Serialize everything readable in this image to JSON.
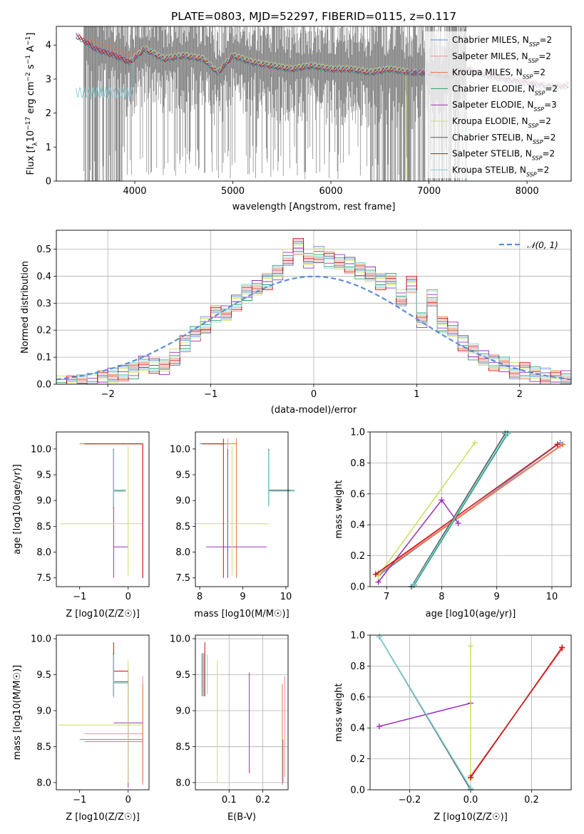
{
  "chart_data": [
    {
      "id": "spectrum",
      "type": "line",
      "title": "PLATE=0803, MJD=52297, FIBERID=0115, z=0.117",
      "xlabel": "wavelength [Angstrom, rest frame]",
      "ylabel": "Flux [f_λ 10^-17 erg cm^-2 s^-1 A^-1]",
      "xlim": [
        3200,
        8450
      ],
      "ylim": [
        0,
        4.55
      ],
      "xticks": [
        4000,
        5000,
        6000,
        7000,
        8000
      ],
      "yticks": [
        0,
        1,
        2,
        3,
        4
      ],
      "grid": false,
      "legend_position": "top-right",
      "data_x": [
        3400,
        3600,
        3800,
        3950,
        4100,
        4300,
        4500,
        4700,
        4850,
        5000,
        5200,
        5400,
        5600,
        5800,
        6000,
        6200,
        6400,
        6600,
        6800,
        7000,
        7200,
        7400,
        7600,
        7800,
        8000,
        8200,
        8400
      ],
      "data_y": [
        4.3,
        3.9,
        3.7,
        3.5,
        3.9,
        3.6,
        3.7,
        3.6,
        3.2,
        3.7,
        3.5,
        3.4,
        3.3,
        3.4,
        3.3,
        3.3,
        3.2,
        3.3,
        3.2,
        3.2,
        3.1,
        3.3,
        3.1,
        3.0,
        2.9,
        2.8,
        2.8
      ],
      "series": [
        {
          "name": "Chabrier MILES, N_SSP=2",
          "color": "#5b8fd6"
        },
        {
          "name": "Salpeter MILES, N_SSP=2",
          "color": "#f08ca0"
        },
        {
          "name": "Kroupa MILES, N_SSP=2",
          "color": "#e07840"
        },
        {
          "name": "Chabrier ELODIE, N_SSP=2",
          "color": "#2a9e6e"
        },
        {
          "name": "Salpeter ELODIE, N_SSP=3",
          "color": "#9a30b8"
        },
        {
          "name": "Kroupa ELODIE, N_SSP=2",
          "color": "#c8e060"
        },
        {
          "name": "Chabrier STELIB, N_SSP=2",
          "color": "#555555"
        },
        {
          "name": "Salpeter STELIB, N_SSP=2",
          "color": "#cc1010"
        },
        {
          "name": "Kroupa STELIB, N_SSP=2",
          "color": "#80d0d8"
        }
      ]
    },
    {
      "id": "residuals",
      "type": "line",
      "xlabel": "(data-model)/error",
      "ylabel": "Normed distribution",
      "xlim": [
        -2.5,
        2.5
      ],
      "ylim": [
        0,
        0.57
      ],
      "xticks": [
        -2,
        -1,
        0,
        1,
        2
      ],
      "yticks": [
        0.0,
        0.1,
        0.2,
        0.3,
        0.4,
        0.5
      ],
      "grid": true,
      "legend_position": "top-right",
      "gaussian_label": "𝒩(0, 1)",
      "hist_edges": [
        -2.5,
        -2.4,
        -2.3,
        -2.2,
        -2.1,
        -2.0,
        -1.9,
        -1.8,
        -1.7,
        -1.6,
        -1.5,
        -1.4,
        -1.3,
        -1.2,
        -1.1,
        -1.0,
        -0.9,
        -0.8,
        -0.7,
        -0.6,
        -0.5,
        -0.4,
        -0.3,
        -0.2,
        -0.1,
        0.0,
        0.1,
        0.2,
        0.3,
        0.4,
        0.5,
        0.6,
        0.7,
        0.8,
        0.9,
        1.0,
        1.1,
        1.2,
        1.3,
        1.4,
        1.5,
        1.6,
        1.7,
        1.8,
        1.9,
        2.0,
        2.1,
        2.2,
        2.3,
        2.4,
        2.5
      ],
      "hist_values": [
        0.0,
        0.0,
        0.01,
        0.01,
        0.02,
        0.03,
        0.04,
        0.05,
        0.08,
        0.07,
        0.06,
        0.1,
        0.15,
        0.19,
        0.22,
        0.26,
        0.26,
        0.3,
        0.34,
        0.36,
        0.38,
        0.41,
        0.47,
        0.51,
        0.46,
        0.48,
        0.46,
        0.45,
        0.44,
        0.42,
        0.41,
        0.38,
        0.38,
        0.32,
        0.37,
        0.24,
        0.32,
        0.22,
        0.2,
        0.15,
        0.12,
        0.1,
        0.08,
        0.07,
        0.05,
        0.05,
        0.04,
        0.03,
        0.02,
        0.02
      ],
      "gaussian": {
        "mean": 0,
        "sigma": 1
      }
    },
    {
      "id": "age-vs-z",
      "type": "scatter",
      "xlabel": "Z [log10(Z/Z☉)]",
      "ylabel": "age [log10(age/yr)]",
      "xlim": [
        -1.48,
        0.43
      ],
      "ylim": [
        7.33,
        10.33
      ],
      "xticks": [
        -1,
        0
      ],
      "yticks": [
        7.5,
        8.0,
        8.5,
        9.0,
        9.5,
        10.0
      ],
      "grid": false
    },
    {
      "id": "age-vs-mass",
      "type": "scatter",
      "xlabel": "mass [log10(M/M☉)]",
      "xlim": [
        7.9,
        10.05
      ],
      "ylim": [
        7.33,
        10.33
      ],
      "xticks": [
        8,
        9,
        10
      ],
      "yticks": [
        7.5,
        8.0,
        8.5,
        9.0,
        9.5,
        10.0
      ],
      "grid": false
    },
    {
      "id": "massweight-vs-age",
      "type": "line",
      "xlabel": "age [log10(age/yr)]",
      "ylabel": "mass weight",
      "xlim": [
        6.7,
        10.35
      ],
      "ylim": [
        0,
        1
      ],
      "xticks": [
        7,
        8,
        9,
        10
      ],
      "yticks": [
        0.0,
        0.2,
        0.4,
        0.6,
        0.8,
        1.0
      ],
      "grid": true,
      "lines": [
        {
          "x": [
            6.85,
            10.15
          ],
          "y": [
            0.07,
            0.93
          ]
        },
        {
          "x": [
            6.85,
            10.15
          ],
          "y": [
            0.09,
            0.91
          ]
        },
        {
          "x": [
            6.85,
            10.2
          ],
          "y": [
            0.08,
            0.92
          ]
        },
        {
          "x": [
            7.5,
            9.2
          ],
          "y": [
            0.01,
            0.99
          ]
        },
        {
          "x": [
            6.85,
            8.0,
            8.3
          ],
          "y": [
            0.03,
            0.56,
            0.41
          ]
        },
        {
          "x": [
            6.85,
            8.6
          ],
          "y": [
            0.07,
            0.93
          ]
        },
        {
          "x": [
            7.45,
            9.15
          ],
          "y": [
            0.0,
            0.99
          ]
        },
        {
          "x": [
            6.8,
            10.1
          ],
          "y": [
            0.08,
            0.92
          ]
        },
        {
          "x": [
            7.48,
            9.18
          ],
          "y": [
            0.01,
            0.99
          ]
        }
      ]
    },
    {
      "id": "mass-vs-z",
      "type": "scatter",
      "xlabel": "Z [log10(Z/Z☉)]",
      "ylabel": "mass [log10(M/M☉)]",
      "xlim": [
        -1.48,
        0.43
      ],
      "ylim": [
        7.9,
        10.05
      ],
      "xticks": [
        -1,
        0
      ],
      "yticks": [
        8.0,
        8.5,
        9.0,
        9.5,
        10.0
      ],
      "grid": false
    },
    {
      "id": "mass-vs-ebv",
      "type": "scatter",
      "xlabel": "E(B-V)",
      "xlim": [
        0.0,
        0.275
      ],
      "ylim": [
        7.9,
        10.05
      ],
      "xticks": [
        0.1,
        0.2
      ],
      "yticks": [
        8.0,
        8.5,
        9.0,
        9.5,
        10.0
      ],
      "grid": true
    },
    {
      "id": "massweight-vs-z",
      "type": "line",
      "xlabel": "Z [log10(Z/Z☉)]",
      "ylabel": "mass weight",
      "xlim": [
        -0.33,
        0.33
      ],
      "ylim": [
        0,
        1
      ],
      "xticks": [
        -0.2,
        0.0,
        0.2
      ],
      "yticks": [
        0.0,
        0.2,
        0.4,
        0.6,
        0.8,
        1.0
      ],
      "grid": true,
      "lines": [
        {
          "x": [
            0.0,
            0.3
          ],
          "y": [
            0.08,
            0.92
          ]
        },
        {
          "x": [
            0.0,
            0.3
          ],
          "y": [
            0.09,
            0.91
          ]
        },
        {
          "x": [
            0.0,
            0.3
          ],
          "y": [
            0.08,
            0.92
          ]
        },
        {
          "x": [
            -0.3,
            0.0
          ],
          "y": [
            0.99,
            0.01
          ]
        },
        {
          "x": [
            -0.3,
            0.0
          ],
          "y": [
            0.41,
            0.56
          ]
        },
        {
          "x": [
            0.0,
            0.0
          ],
          "y": [
            0.07,
            0.93
          ]
        },
        {
          "x": [
            -0.3,
            0.0
          ],
          "y": [
            0.99,
            0.0
          ]
        },
        {
          "x": [
            0.0,
            0.3
          ],
          "y": [
            0.08,
            0.92
          ]
        },
        {
          "x": [
            -0.3,
            0.0
          ],
          "y": [
            0.99,
            0.01
          ]
        }
      ]
    }
  ]
}
